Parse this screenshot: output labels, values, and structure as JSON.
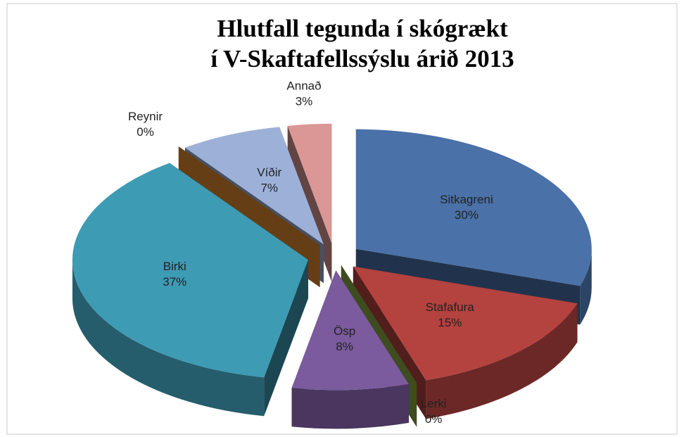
{
  "chart_data": {
    "type": "pie",
    "title": [
      "Hlutfall tegunda í skógrækt",
      "í V-Skaftafellssýslu árið 2013"
    ],
    "categories": [
      "Sitkagreni",
      "Stafafura",
      "Lerki",
      "Ösp",
      "Birki",
      "Reynir",
      "Víðir",
      "Annað"
    ],
    "values": [
      30,
      15,
      0,
      8,
      37,
      0,
      7,
      3
    ],
    "value_labels": [
      "30%",
      "15%",
      "0%",
      "8%",
      "37%",
      "0%",
      "7%",
      "3%"
    ],
    "colors": [
      "#4a71a8",
      "#b4423f",
      "#8aa845",
      "#7b5a9d",
      "#3e9bb4",
      "#e08a2e",
      "#9db1d8",
      "#da9795"
    ]
  }
}
